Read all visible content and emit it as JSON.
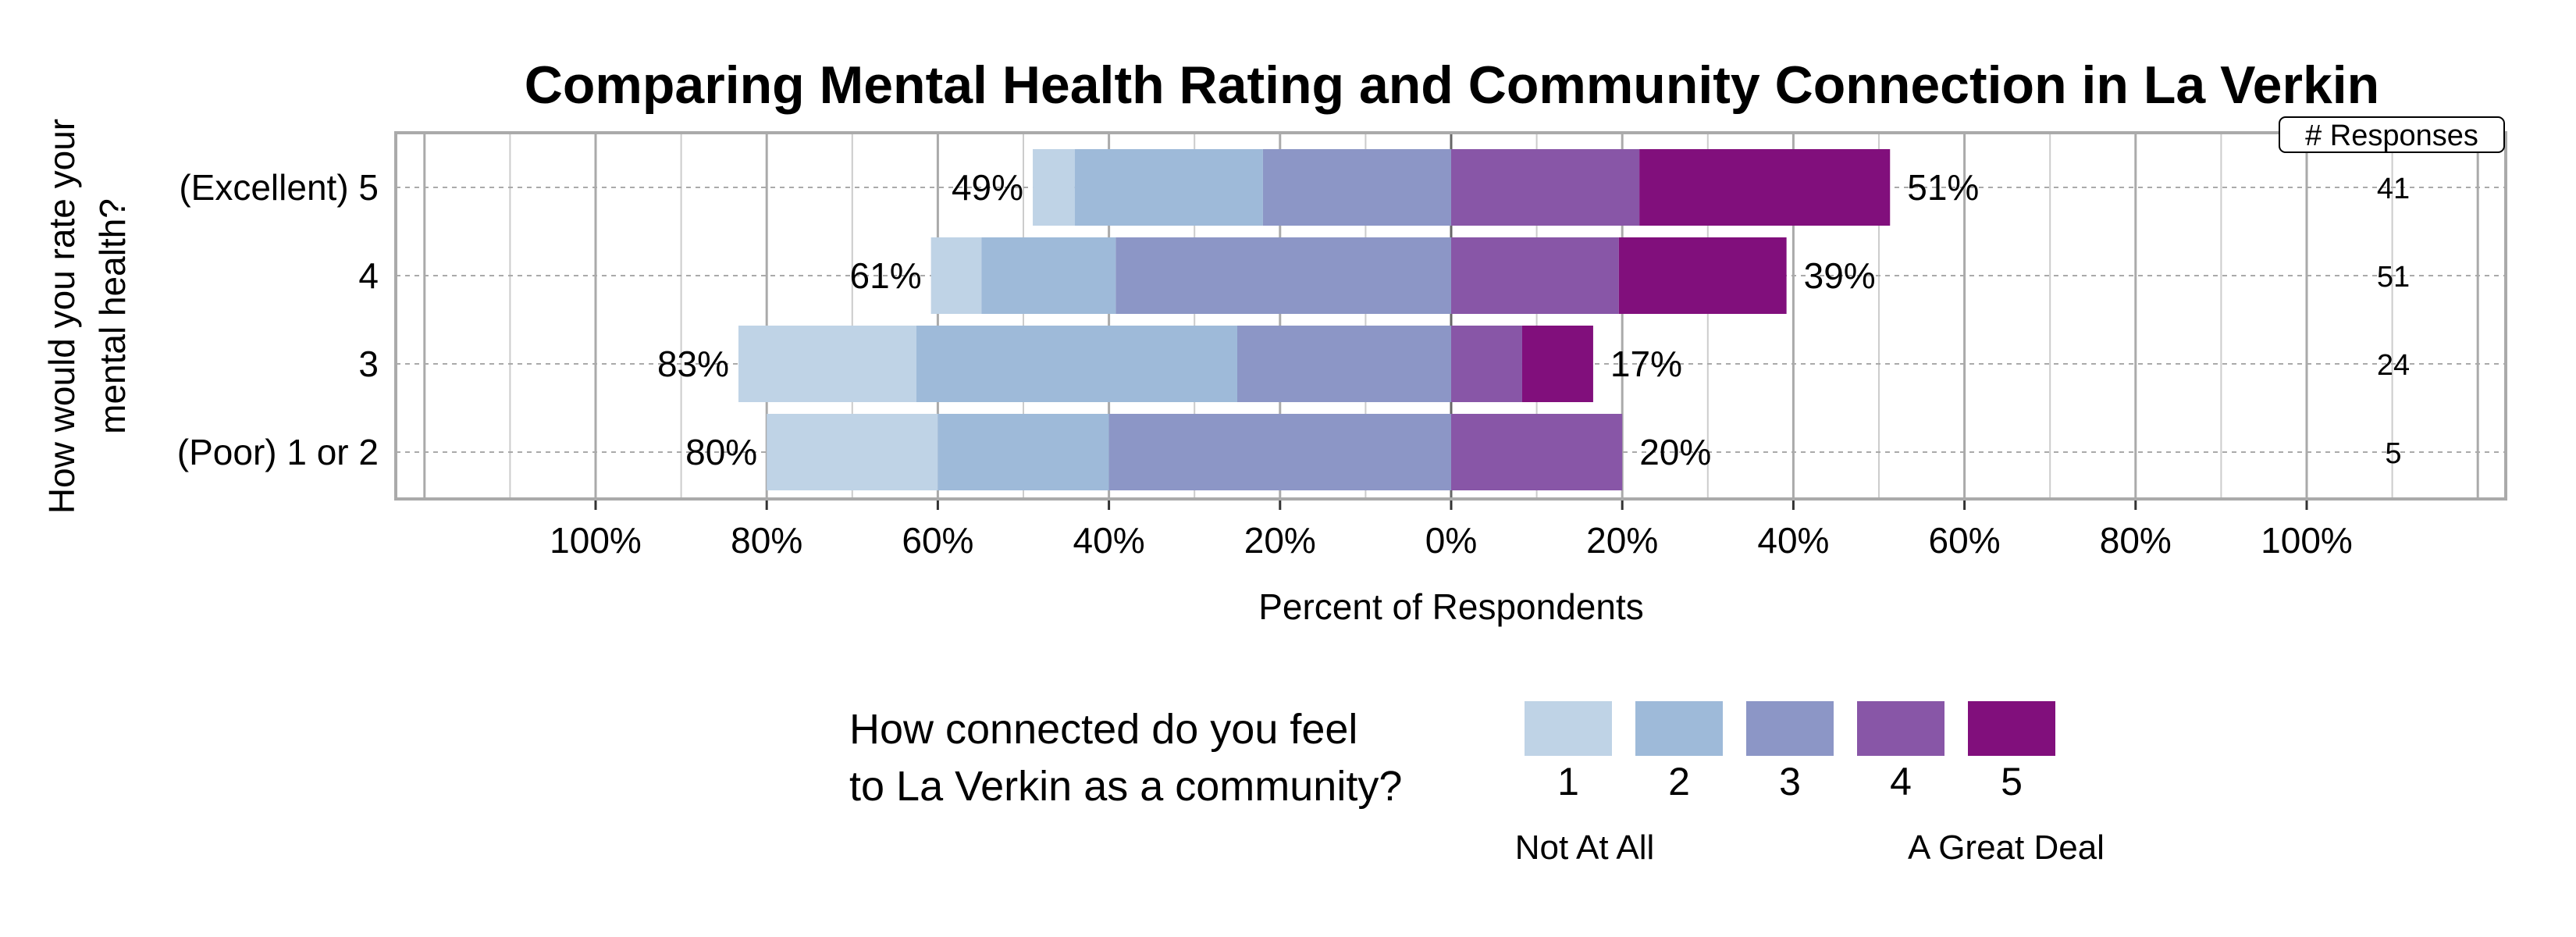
{
  "chart_data": {
    "type": "bar",
    "subtype": "diverging-stacked-horizontal",
    "title": "Comparing Mental Health Rating and Community Connection in La Verkin",
    "xlabel": "Percent of Respondents",
    "ylabel": "How would you rate your mental health?",
    "xlim": [
      -100,
      100
    ],
    "x_ticks": [
      "100%",
      "80%",
      "60%",
      "40%",
      "20%",
      "0%",
      "20%",
      "40%",
      "60%",
      "80%",
      "100%"
    ],
    "grid": true,
    "categories": [
      "(Excellent) 5",
      "4",
      "3",
      "(Poor) 1 or 2"
    ],
    "responses_header": "# Responses",
    "responses": [
      41,
      51,
      24,
      5
    ],
    "left_totals": [
      "49%",
      "61%",
      "83%",
      "80%"
    ],
    "right_totals": [
      "51%",
      "39%",
      "17%",
      "20%"
    ],
    "series": [
      {
        "name": "1",
        "color": "#bfd3e6",
        "values": [
          4.9,
          5.9,
          20.8,
          20
        ]
      },
      {
        "name": "2",
        "color": "#9ebad9",
        "values": [
          22.0,
          15.7,
          37.5,
          20
        ]
      },
      {
        "name": "3",
        "color": "#8c96c6",
        "values": [
          22.0,
          39.2,
          25.0,
          40
        ]
      },
      {
        "name": "4",
        "color": "#8856a7",
        "values": [
          22.0,
          19.6,
          8.3,
          20
        ]
      },
      {
        "name": "5",
        "color": "#810f7c",
        "values": [
          29.3,
          19.6,
          8.3,
          0
        ]
      }
    ],
    "legend": {
      "title_line1": "How connected do you feel",
      "title_line2": "to La Verkin as a community?",
      "low_label": "Not At All",
      "high_label": "A Great Deal",
      "placement": "bottom"
    }
  }
}
